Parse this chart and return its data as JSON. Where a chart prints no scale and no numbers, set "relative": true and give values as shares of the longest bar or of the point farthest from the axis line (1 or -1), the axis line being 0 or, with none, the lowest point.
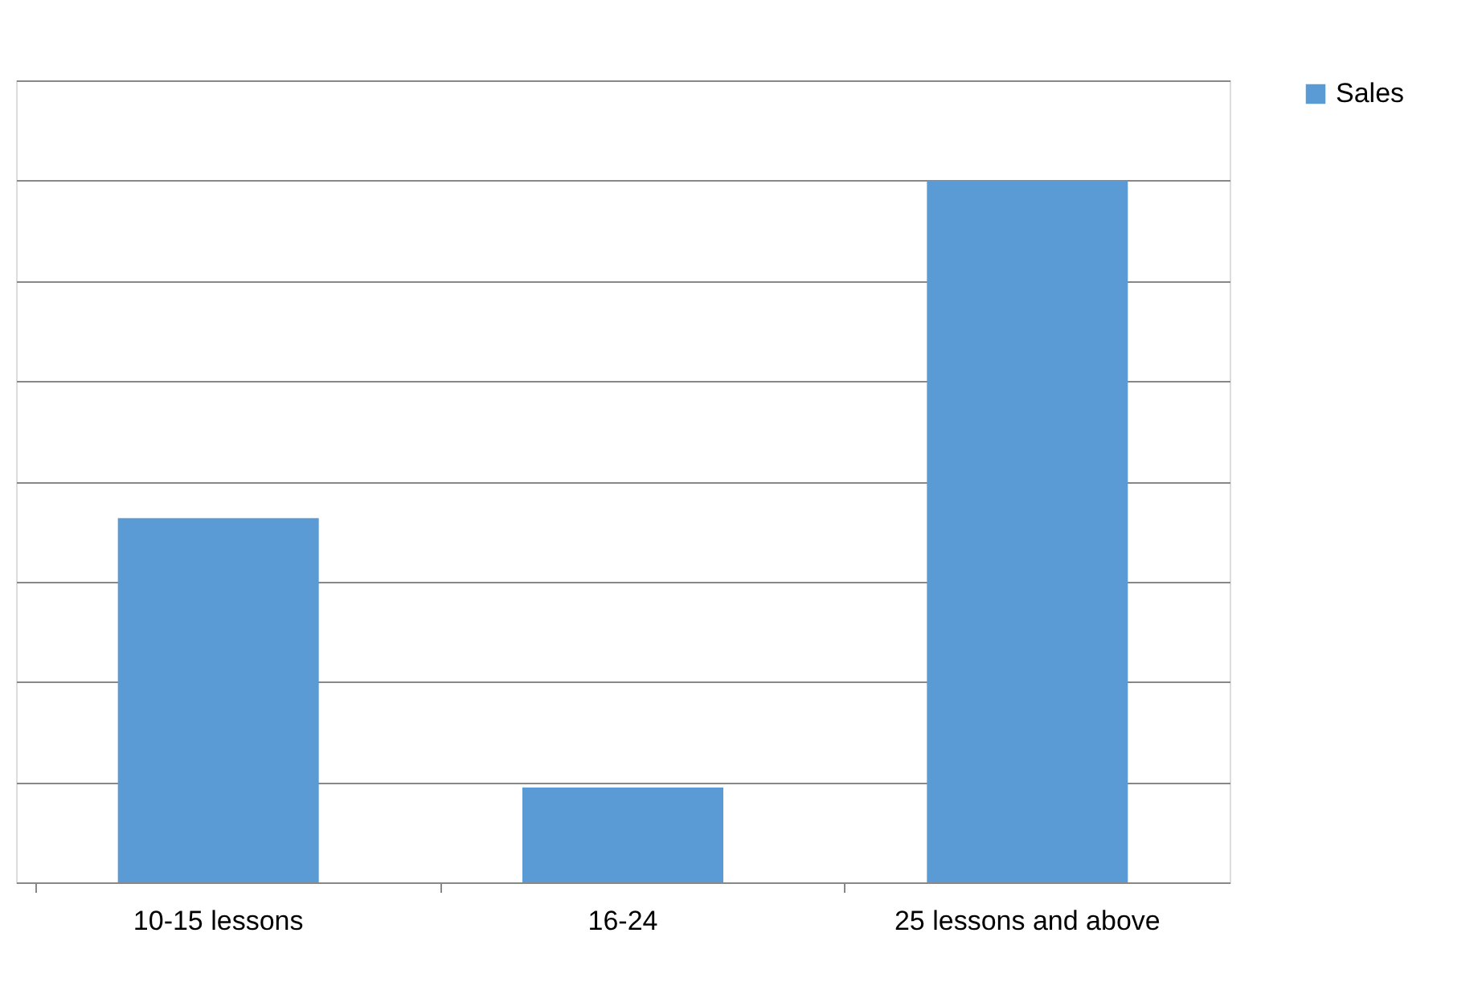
{
  "chart_data": {
    "type": "bar",
    "relative": true,
    "categories": [
      "10-15 lessons",
      "16-24",
      "25 lessons and above"
    ],
    "series": [
      {
        "name": "Sales",
        "color": "#5b9bd5",
        "values": [
          0.519,
          0.135,
          1
        ]
      }
    ],
    "grid": "y",
    "legend": "right"
  }
}
